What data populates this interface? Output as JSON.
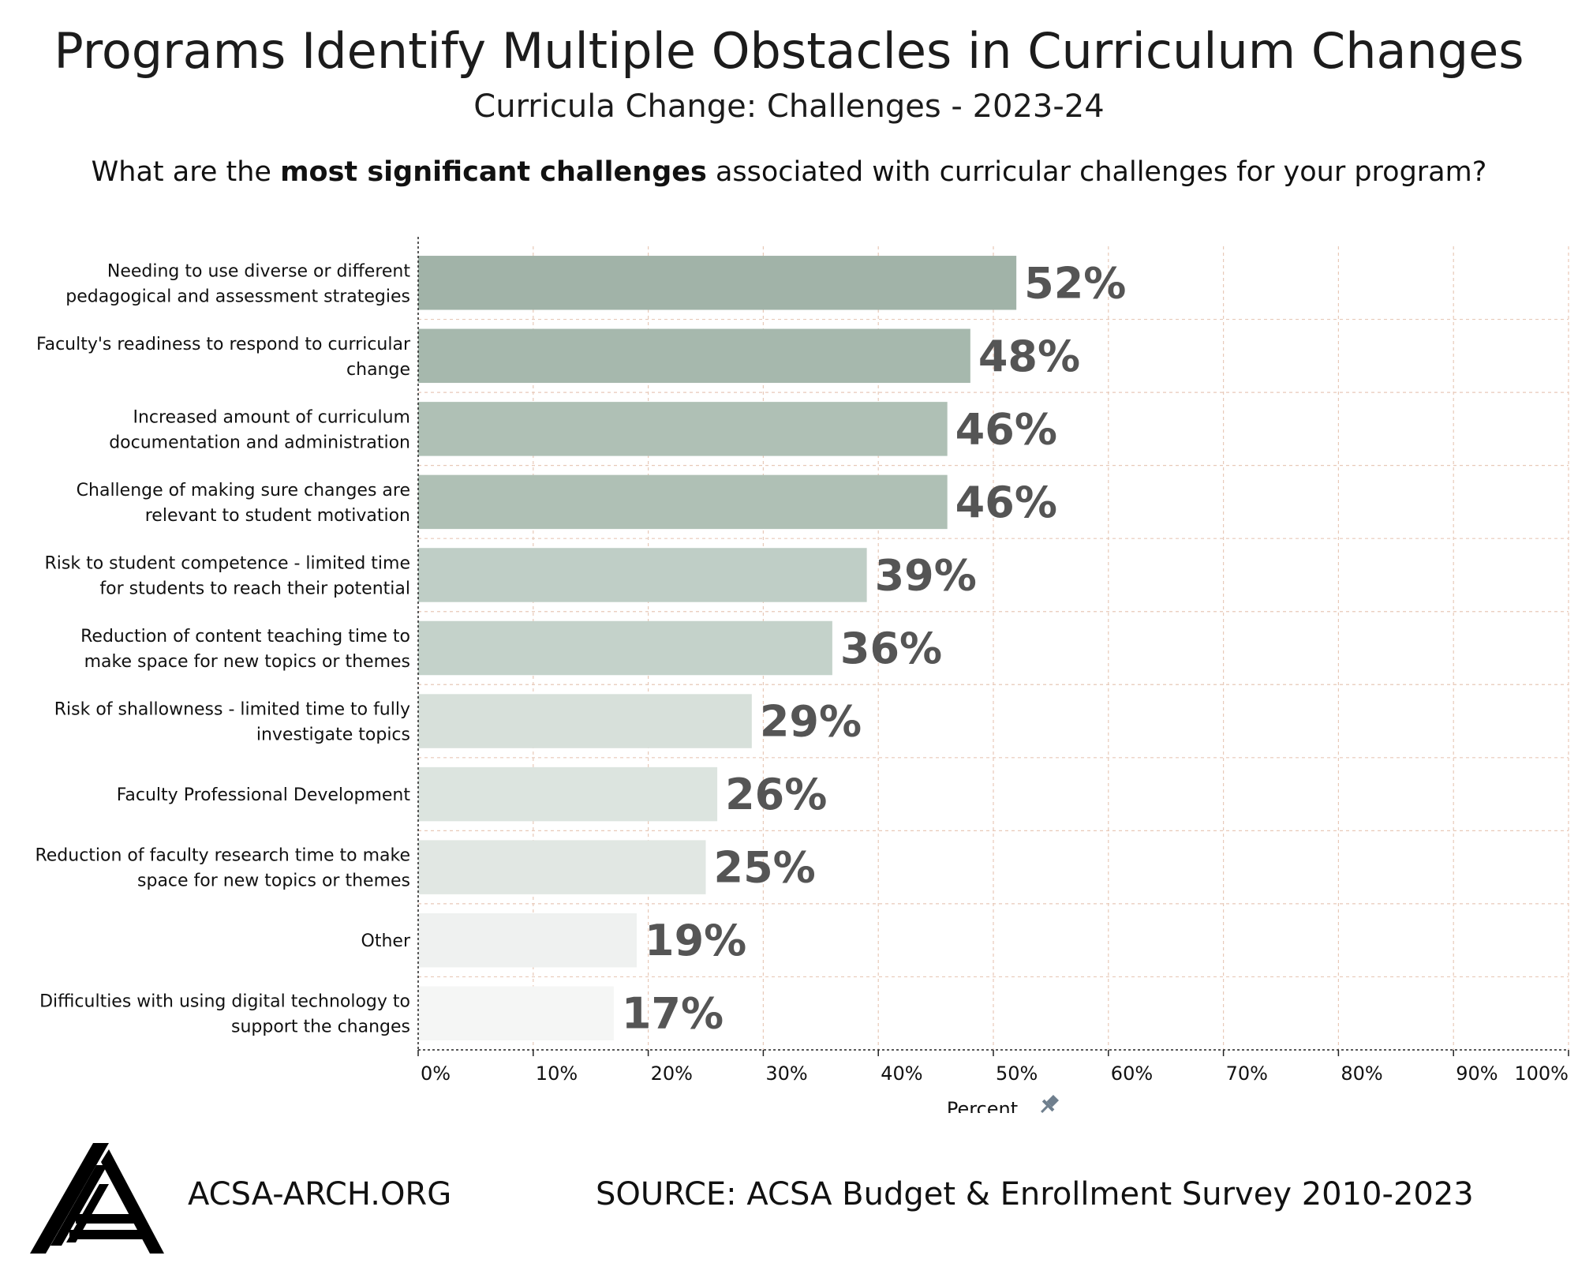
{
  "header": {
    "title": "Programs Identify Multiple Obstacles in Curriculum Changes",
    "subtitle": "Curricula Change: Challenges - 2023-24",
    "question_pre": "What are the ",
    "question_bold": "most significant challenges",
    "question_post": " associated with curricular challenges for your program?"
  },
  "footer": {
    "org": "ACSA-ARCH.ORG",
    "source": "SOURCE: ACSA Budget & Enrollment Survey 2010-2023"
  },
  "chart_data": {
    "type": "bar",
    "orientation": "horizontal",
    "categories": [
      [
        "Needing to use diverse or different",
        "pedagogical and assessment strategies"
      ],
      [
        "Faculty's readiness to respond to curricular",
        "change"
      ],
      [
        "Increased amount of curriculum",
        "documentation and administration"
      ],
      [
        "Challenge of making sure changes are",
        "relevant to student motivation"
      ],
      [
        "Risk to student competence  - limited time",
        "for students to reach their potential"
      ],
      [
        "Reduction of content teaching time to",
        "make space for new topics or themes"
      ],
      [
        "Risk of shallowness - limited time to fully",
        "investigate topics"
      ],
      [
        "Faculty Professional Development"
      ],
      [
        "Reduction of faculty research time to make",
        "space for new topics or themes"
      ],
      [
        "Other"
      ],
      [
        "Difficulties with using digital technology to",
        "support the changes"
      ]
    ],
    "values": [
      52,
      48,
      46,
      46,
      39,
      36,
      29,
      26,
      25,
      19,
      17
    ],
    "value_labels": [
      "52%",
      "48%",
      "46%",
      "46%",
      "39%",
      "36%",
      "29%",
      "26%",
      "25%",
      "19%",
      "17%"
    ],
    "colors": [
      "#a1b3a8",
      "#a6b8ad",
      "#afc0b5",
      "#afc0b5",
      "#bfcec6",
      "#c4d2ca",
      "#d7e0da",
      "#dce4df",
      "#e1e7e3",
      "#eff1f0",
      "#f5f6f5"
    ],
    "xlabel": "Percent",
    "ylabel": "",
    "xlim": [
      0,
      100
    ],
    "xticks": [
      0,
      10,
      20,
      30,
      40,
      50,
      60,
      70,
      80,
      90,
      100
    ],
    "xtick_labels": [
      "0%",
      "10%",
      "20%",
      "30%",
      "40%",
      "50%",
      "60%",
      "70%",
      "80%",
      "90%",
      "100%"
    ],
    "grid": true,
    "grid_color": "#e8c9b8"
  }
}
